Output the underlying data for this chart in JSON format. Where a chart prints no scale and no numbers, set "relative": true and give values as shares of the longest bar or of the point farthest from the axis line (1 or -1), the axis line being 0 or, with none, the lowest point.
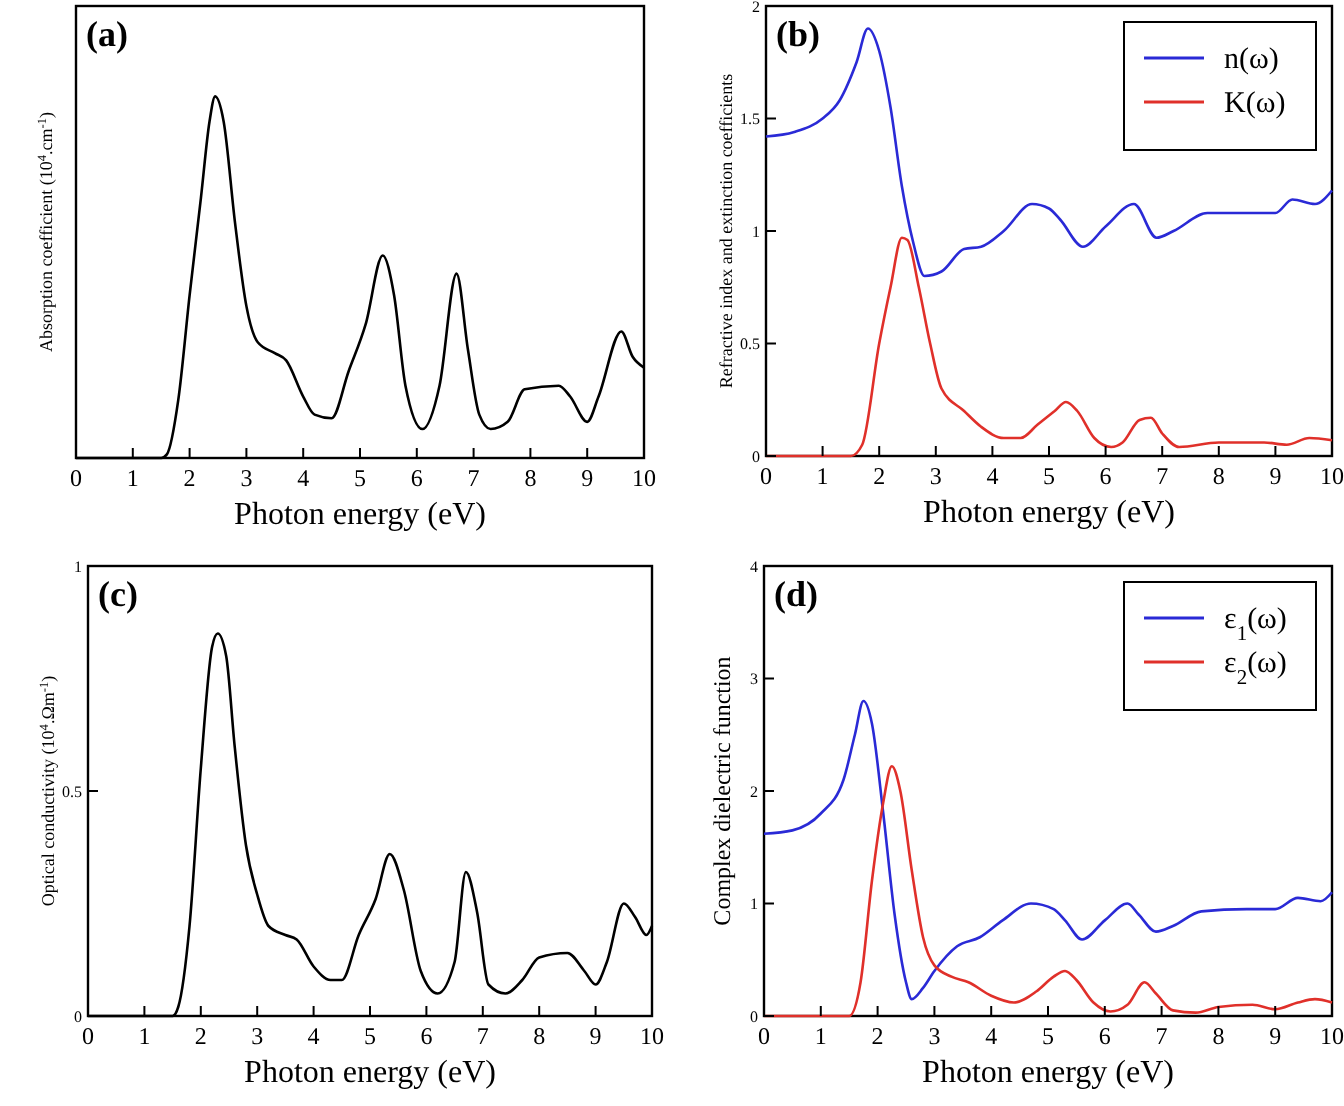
{
  "chart_data": [
    {
      "type": "line",
      "title": "(a)",
      "xlabel": "Photon energy (eV)",
      "ylabel": "Absorption coefficient (10$^{4}$.cm$^{-1}$)",
      "relative": true,
      "xlim": [
        0,
        10
      ],
      "xticks": [
        0,
        1,
        2,
        3,
        4,
        5,
        6,
        7,
        8,
        9,
        10
      ],
      "grid": false,
      "legend": false,
      "marker": "none",
      "line_style": "solid",
      "series": [
        {
          "color": "#000000",
          "x": [
            0,
            1,
            1.5,
            1.6,
            1.8,
            2.0,
            2.2,
            2.35,
            2.45,
            2.6,
            2.8,
            3.0,
            3.2,
            3.5,
            3.7,
            4.0,
            4.2,
            4.5,
            4.8,
            5.1,
            5.4,
            5.6,
            5.8,
            6.1,
            6.4,
            6.7,
            6.9,
            7.1,
            7.3,
            7.6,
            7.9,
            8.5,
            8.7,
            9.0,
            9.2,
            9.6,
            9.8,
            10
          ],
          "values": [
            0,
            0,
            0,
            0.01,
            0.16,
            0.45,
            0.72,
            0.93,
            1,
            0.93,
            0.65,
            0.42,
            0.32,
            0.29,
            0.27,
            0.17,
            0.12,
            0.11,
            0.24,
            0.37,
            0.56,
            0.45,
            0.2,
            0.08,
            0.2,
            0.51,
            0.3,
            0.12,
            0.08,
            0.1,
            0.19,
            0.2,
            0.17,
            0.1,
            0.17,
            0.35,
            0.28,
            0.25
          ]
        }
      ]
    },
    {
      "type": "line",
      "title": "(b)",
      "xlabel": "Photon energy (eV)",
      "ylabel": "Refractive index and extinction coefficients",
      "xlim": [
        0,
        10
      ],
      "xticks": [
        0,
        1,
        2,
        3,
        4,
        5,
        6,
        7,
        8,
        9,
        10
      ],
      "ylim": [
        0,
        2
      ],
      "yticks": [
        0,
        0.5,
        1,
        1.5,
        2
      ],
      "grid": false,
      "legend": "top right",
      "marker": "none",
      "line_style": "solid",
      "series": [
        {
          "name": "n(ω)",
          "color": "#2a2ad6",
          "x": [
            0,
            0.5,
            1.0,
            1.3,
            1.6,
            1.8,
            2.0,
            2.2,
            2.4,
            2.6,
            2.8,
            3.1,
            3.5,
            3.8,
            4.2,
            4.7,
            5.0,
            5.2,
            5.6,
            6.0,
            6.5,
            6.9,
            7.2,
            7.8,
            8.5,
            9.0,
            9.3,
            9.7,
            10
          ],
          "values": [
            1.42,
            1.44,
            1.5,
            1.58,
            1.75,
            1.9,
            1.8,
            1.55,
            1.2,
            0.95,
            0.8,
            0.82,
            0.92,
            0.93,
            1.0,
            1.12,
            1.1,
            1.05,
            0.93,
            1.02,
            1.12,
            0.97,
            1.0,
            1.08,
            1.08,
            1.08,
            1.14,
            1.12,
            1.18
          ]
        },
        {
          "name": "K(ω)",
          "color": "#e0302a",
          "x": [
            0,
            1.5,
            1.7,
            2.0,
            2.2,
            2.4,
            2.5,
            2.7,
            2.9,
            3.1,
            3.5,
            3.8,
            4.2,
            4.5,
            4.8,
            5.1,
            5.3,
            5.5,
            5.8,
            6.1,
            6.3,
            6.6,
            6.8,
            7.0,
            7.3,
            8,
            8.8,
            9.2,
            9.6,
            10
          ],
          "values": [
            0,
            0,
            0.05,
            0.5,
            0.75,
            0.97,
            0.96,
            0.75,
            0.5,
            0.3,
            0.2,
            0.13,
            0.08,
            0.08,
            0.14,
            0.2,
            0.24,
            0.2,
            0.08,
            0.04,
            0.06,
            0.16,
            0.17,
            0.1,
            0.04,
            0.06,
            0.06,
            0.05,
            0.08,
            0.07
          ]
        }
      ]
    },
    {
      "type": "line",
      "title": "(c)",
      "xlabel": "Photon energy (eV)",
      "ylabel": "Optical conductivity (10$^{4}$.Ωm$^{-1}$)",
      "xlim": [
        0,
        10
      ],
      "xticks": [
        0,
        1,
        2,
        3,
        4,
        5,
        6,
        7,
        8,
        9,
        10
      ],
      "ylim": [
        0,
        1
      ],
      "yticks": [
        0,
        0.5,
        1
      ],
      "grid": false,
      "legend": false,
      "marker": "none",
      "line_style": "solid",
      "series": [
        {
          "color": "#000000",
          "x": [
            0,
            1.5,
            1.6,
            1.8,
            2.0,
            2.2,
            2.3,
            2.45,
            2.6,
            2.8,
            3.0,
            3.2,
            3.5,
            3.7,
            4.0,
            4.3,
            4.5,
            4.8,
            5.1,
            5.35,
            5.6,
            5.9,
            6.2,
            6.5,
            6.7,
            6.9,
            7.1,
            7.4,
            7.7,
            8.0,
            8.5,
            8.8,
            9.0,
            9.2,
            9.5,
            9.7,
            9.9,
            10
          ],
          "values": [
            0,
            0,
            0.02,
            0.2,
            0.55,
            0.82,
            0.85,
            0.8,
            0.6,
            0.38,
            0.27,
            0.2,
            0.18,
            0.17,
            0.11,
            0.08,
            0.08,
            0.18,
            0.26,
            0.36,
            0.28,
            0.1,
            0.05,
            0.12,
            0.32,
            0.23,
            0.07,
            0.05,
            0.08,
            0.13,
            0.14,
            0.1,
            0.07,
            0.12,
            0.25,
            0.22,
            0.18,
            0.2
          ]
        }
      ]
    },
    {
      "type": "line",
      "title": "(d)",
      "xlabel": "Photon energy (eV)",
      "ylabel": "Complex dielectric function",
      "xlim": [
        0,
        10
      ],
      "xticks": [
        0,
        1,
        2,
        3,
        4,
        5,
        6,
        7,
        8,
        9,
        10
      ],
      "ylim": [
        0,
        4
      ],
      "yticks": [
        0,
        1,
        2,
        3,
        4
      ],
      "grid": false,
      "legend": "top right",
      "marker": "none",
      "line_style": "solid",
      "series": [
        {
          "name": "ε$_{1}$(ω)",
          "color": "#2a2ad6",
          "x": [
            0,
            0.5,
            1.0,
            1.4,
            1.6,
            1.75,
            1.9,
            2.1,
            2.3,
            2.5,
            2.6,
            2.8,
            3.0,
            3.4,
            3.8,
            4.2,
            4.7,
            5.1,
            5.3,
            5.6,
            6.0,
            6.4,
            6.6,
            6.9,
            7.2,
            7.7,
            8.5,
            9.0,
            9.4,
            9.8,
            10
          ],
          "values": [
            1.62,
            1.65,
            1.8,
            2.1,
            2.5,
            2.8,
            2.6,
            1.8,
            0.9,
            0.3,
            0.15,
            0.25,
            0.4,
            0.62,
            0.7,
            0.85,
            1.0,
            0.95,
            0.85,
            0.68,
            0.85,
            1.0,
            0.9,
            0.75,
            0.8,
            0.93,
            0.95,
            0.95,
            1.05,
            1.02,
            1.1
          ]
        },
        {
          "name": "ε$_{2}$(ω)",
          "color": "#e0302a",
          "x": [
            0,
            1.5,
            1.7,
            1.9,
            2.1,
            2.25,
            2.4,
            2.6,
            2.8,
            3.0,
            3.3,
            3.6,
            4.0,
            4.4,
            4.8,
            5.1,
            5.3,
            5.5,
            5.8,
            6.1,
            6.4,
            6.7,
            6.9,
            7.2,
            7.6,
            8,
            8.6,
            9,
            9.4,
            9.7,
            10
          ],
          "values": [
            0,
            0,
            0.3,
            1.2,
            1.9,
            2.22,
            2.0,
            1.3,
            0.7,
            0.45,
            0.35,
            0.3,
            0.18,
            0.12,
            0.22,
            0.35,
            0.4,
            0.32,
            0.12,
            0.04,
            0.1,
            0.3,
            0.2,
            0.05,
            0.03,
            0.08,
            0.1,
            0.06,
            0.12,
            0.15,
            0.12
          ]
        }
      ]
    }
  ]
}
